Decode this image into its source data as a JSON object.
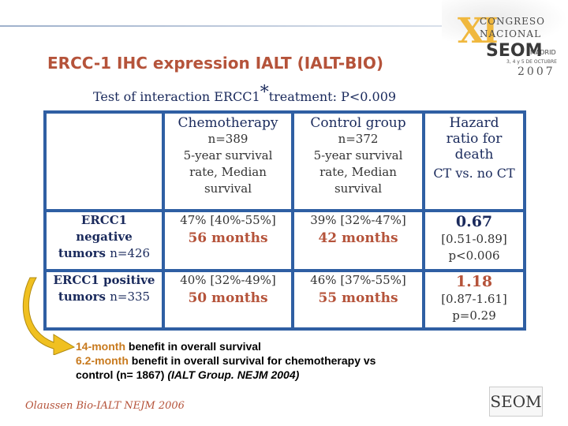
{
  "slide": {
    "title": "ERCC-1 IHC expression IALT (IALT-BIO)",
    "subtitle_pre": "Test of interaction ERCC1",
    "subtitle_sup": "*",
    "subtitle_post": "treatment: P<0.009"
  },
  "logo": {
    "numeral": "XI",
    "line1": "CONGRESO",
    "line2": "NACIONAL",
    "org": "SEOM",
    "city": "MADRID",
    "dates": "3, 4 y 5 DE OCTUBRE",
    "year": "2007"
  },
  "table": {
    "headers": {
      "chemo": {
        "title": "Chemotherapy",
        "n": "n=389",
        "desc1": "5-year survival",
        "desc2": "rate, Median",
        "desc3": "survival"
      },
      "control": {
        "title": "Control group",
        "n": "n=372",
        "desc1": "5-year survival",
        "desc2": "rate, Median",
        "desc3": "survival"
      },
      "hr": {
        "l1": "Hazard",
        "l2": "ratio for",
        "l3": "death",
        "l4": "CT vs. no CT"
      }
    },
    "rows": [
      {
        "label1": "ERCC1",
        "label2": "negative",
        "label3": "tumors",
        "n": "n=426",
        "chemo_pct": "47% [40%-55%]",
        "chemo_months": "56 months",
        "control_pct": "39% [32%-47%]",
        "control_months": "42 months",
        "hr": "0.67",
        "ci": "[0.51-0.89]",
        "p": "p<0.006"
      },
      {
        "label1": "ERCC1 positive",
        "label2": "tumors",
        "n": "n=335",
        "chemo_pct": "40% [32%-49%]",
        "chemo_months": "50 months",
        "control_pct": "46% [37%-55%]",
        "control_months": "55 months",
        "hr": "1.18",
        "ci": "[0.87-1.61]",
        "p": "p=0.29"
      }
    ]
  },
  "benefits": {
    "line1_hl": "14-month",
    "line1_rest": " benefit in overall survival",
    "line2_hl": "6.2-month",
    "line2_rest": " benefit in overall survival for chemotherapy vs",
    "line3_pre": "control (n= 1867) ",
    "line3_italic": "(IALT Group. NEJM 2004)"
  },
  "footer": "Olaussen Bio-IALT NEJM 2006",
  "footer_logo": "SEOM",
  "colors": {
    "accent": "#b5533a",
    "navy": "#1a2a5c",
    "table_border": "#2f5fa3",
    "highlight": "#c87a1e",
    "arrow": "#f0c020"
  }
}
